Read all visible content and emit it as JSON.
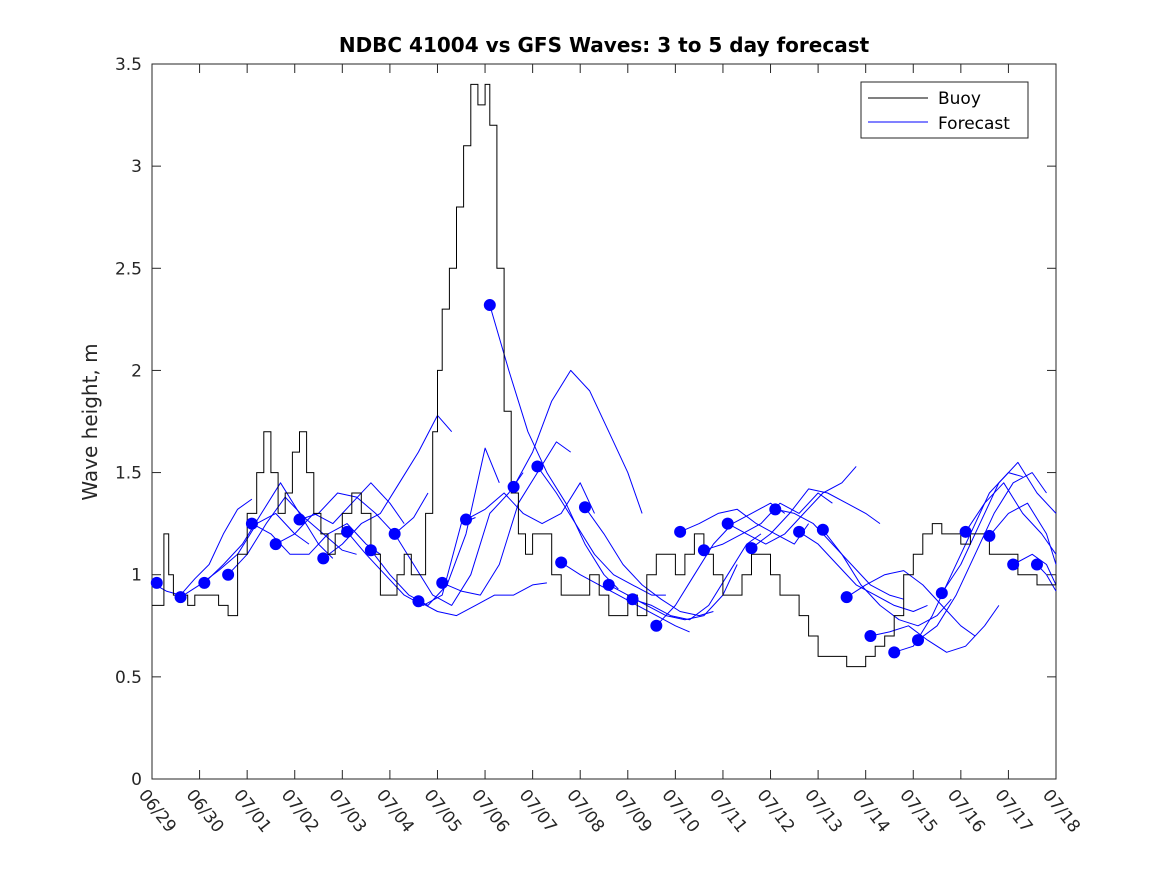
{
  "chart_data": {
    "type": "line",
    "title": "NDBC 41004 vs GFS Waves: 3 to 5 day forecast",
    "xlabel": "",
    "ylabel": "Wave height, m",
    "xlim": [
      0,
      19
    ],
    "ylim": [
      0,
      3.5
    ],
    "x_tick_labels": [
      "06/29",
      "06/30",
      "07/01",
      "07/02",
      "07/03",
      "07/04",
      "07/05",
      "07/06",
      "07/07",
      "07/08",
      "07/09",
      "07/10",
      "07/11",
      "07/12",
      "07/13",
      "07/14",
      "07/15",
      "07/16",
      "07/17",
      "07/18"
    ],
    "y_tick_labels": [
      "0",
      "0.5",
      "1",
      "1.5",
      "2",
      "2.5",
      "3",
      "3.5"
    ],
    "y_ticks": [
      0,
      0.5,
      1,
      1.5,
      2,
      2.5,
      3,
      3.5
    ],
    "x_units": "days since 06/29 00:00",
    "legend": {
      "placement": "top-right",
      "entries": [
        {
          "label": "Buoy",
          "color": "#000000"
        },
        {
          "label": "Forecast",
          "color": "#0000ff"
        }
      ]
    },
    "colors": {
      "buoy": "#000000",
      "forecast": "#0000ff",
      "markers": "#0000ff"
    },
    "buoy": {
      "name": "Buoy",
      "x": [
        0,
        0.15,
        0.25,
        0.35,
        0.45,
        0.6,
        0.75,
        0.9,
        1.0,
        1.2,
        1.4,
        1.6,
        1.8,
        2.0,
        2.2,
        2.35,
        2.5,
        2.65,
        2.8,
        2.95,
        3.1,
        3.25,
        3.4,
        3.55,
        3.7,
        3.85,
        4.0,
        4.2,
        4.4,
        4.6,
        4.8,
        5.0,
        5.15,
        5.3,
        5.45,
        5.6,
        5.75,
        5.9,
        6.0,
        6.1,
        6.25,
        6.4,
        6.55,
        6.7,
        6.85,
        7.0,
        7.1,
        7.25,
        7.4,
        7.55,
        7.7,
        7.85,
        8.0,
        8.2,
        8.4,
        8.6,
        8.8,
        9.0,
        9.2,
        9.4,
        9.6,
        9.8,
        10.0,
        10.2,
        10.4,
        10.6,
        10.8,
        11.0,
        11.2,
        11.4,
        11.6,
        11.8,
        12.0,
        12.2,
        12.4,
        12.6,
        12.8,
        13.0,
        13.2,
        13.4,
        13.6,
        13.8,
        14.0,
        14.2,
        14.4,
        14.6,
        14.8,
        15.0,
        15.2,
        15.4,
        15.6,
        15.8,
        16.0,
        16.2,
        16.4,
        16.6,
        16.8,
        17.0,
        17.2,
        17.4,
        17.6,
        17.8,
        18.0,
        18.2,
        18.4,
        18.6,
        18.8,
        19.0
      ],
      "values": [
        0.85,
        0.85,
        1.2,
        1.0,
        0.9,
        0.9,
        0.85,
        0.9,
        0.9,
        0.9,
        0.85,
        0.8,
        1.1,
        1.3,
        1.5,
        1.7,
        1.5,
        1.3,
        1.4,
        1.6,
        1.7,
        1.5,
        1.3,
        1.2,
        1.1,
        1.2,
        1.3,
        1.4,
        1.3,
        1.1,
        0.9,
        0.9,
        1.0,
        1.1,
        1.0,
        1.0,
        1.3,
        1.7,
        2.0,
        2.3,
        2.5,
        2.8,
        3.1,
        3.4,
        3.3,
        3.4,
        3.2,
        2.5,
        1.8,
        1.4,
        1.2,
        1.1,
        1.2,
        1.2,
        1.0,
        0.9,
        0.9,
        0.9,
        1.0,
        0.9,
        0.8,
        0.8,
        0.9,
        0.8,
        1.0,
        1.1,
        1.1,
        1.0,
        1.1,
        1.2,
        1.1,
        1.0,
        0.9,
        0.9,
        1.0,
        1.1,
        1.1,
        1.0,
        0.9,
        0.9,
        0.8,
        0.7,
        0.6,
        0.6,
        0.6,
        0.55,
        0.55,
        0.6,
        0.65,
        0.7,
        0.8,
        1.0,
        1.1,
        1.2,
        1.25,
        1.2,
        1.2,
        1.15,
        1.2,
        1.2,
        1.1,
        1.1,
        1.1,
        1.0,
        1.0,
        0.95,
        0.95,
        1.0
      ]
    },
    "forecast_runs": [
      {
        "x": [
          0.0,
          0.3,
          0.6,
          0.9,
          1.2,
          1.5,
          1.8,
          2.1
        ],
        "values": [
          0.96,
          0.92,
          0.9,
          0.98,
          1.05,
          1.2,
          1.32,
          1.37
        ]
      },
      {
        "x": [
          0.6,
          1.0,
          1.4,
          1.8,
          2.2,
          2.6,
          3.0,
          3.3
        ],
        "values": [
          0.89,
          0.95,
          1.02,
          1.1,
          1.25,
          1.3,
          1.2,
          1.15
        ]
      },
      {
        "x": [
          1.1,
          1.5,
          1.9,
          2.3,
          2.7,
          3.1,
          3.5,
          3.8
        ],
        "values": [
          0.96,
          1.05,
          1.15,
          1.3,
          1.45,
          1.3,
          1.15,
          1.08
        ]
      },
      {
        "x": [
          1.6,
          2.0,
          2.4,
          2.8,
          3.2,
          3.6,
          4.0,
          4.3
        ],
        "values": [
          1.0,
          1.1,
          1.25,
          1.38,
          1.28,
          1.2,
          1.12,
          1.1
        ]
      },
      {
        "x": [
          2.1,
          2.5,
          2.9,
          3.3,
          3.7,
          4.1,
          4.5,
          4.8
        ],
        "values": [
          1.25,
          1.2,
          1.1,
          1.1,
          1.2,
          1.25,
          1.15,
          1.1
        ]
      },
      {
        "x": [
          2.6,
          3.0,
          3.4,
          3.8,
          4.2,
          4.6,
          5.0,
          5.3
        ],
        "values": [
          1.15,
          1.2,
          1.3,
          1.25,
          1.35,
          1.45,
          1.35,
          1.25
        ]
      },
      {
        "x": [
          3.1,
          3.5,
          3.9,
          4.3,
          4.7,
          5.1,
          5.5,
          5.8
        ],
        "values": [
          1.27,
          1.3,
          1.4,
          1.38,
          1.3,
          1.2,
          1.28,
          1.4
        ]
      },
      {
        "x": [
          3.6,
          4.0,
          4.4,
          4.8,
          5.2,
          5.6,
          6.0,
          6.3
        ],
        "values": [
          1.08,
          1.15,
          1.25,
          1.3,
          1.45,
          1.6,
          1.78,
          1.7
        ]
      },
      {
        "x": [
          4.1,
          4.5,
          4.9,
          5.3,
          5.7,
          6.1,
          6.5,
          6.8
        ],
        "values": [
          1.21,
          1.1,
          1.0,
          0.9,
          0.85,
          0.9,
          1.25,
          1.28
        ]
      },
      {
        "x": [
          4.6,
          5.0,
          5.4,
          5.8,
          6.2,
          6.6,
          7.0,
          7.3
        ],
        "values": [
          1.12,
          1.0,
          0.9,
          0.85,
          0.95,
          1.2,
          1.62,
          1.45
        ]
      },
      {
        "x": [
          5.1,
          5.5,
          5.9,
          6.3,
          6.7,
          7.1,
          7.5,
          7.8
        ],
        "values": [
          1.2,
          1.05,
          0.9,
          0.85,
          1.0,
          1.3,
          1.4,
          1.5
        ]
      },
      {
        "x": [
          5.6,
          6.0,
          6.4,
          6.8,
          7.2,
          7.6,
          8.0,
          8.3
        ],
        "values": [
          0.87,
          0.82,
          0.8,
          0.85,
          0.9,
          0.9,
          0.95,
          0.96
        ]
      },
      {
        "x": [
          6.1,
          6.5,
          6.9,
          7.3,
          7.7,
          8.1,
          8.5,
          8.8
        ],
        "values": [
          0.96,
          0.92,
          0.9,
          1.05,
          1.35,
          1.5,
          1.65,
          1.6
        ]
      },
      {
        "x": [
          6.6,
          7.0,
          7.4,
          7.8,
          8.2,
          8.6,
          9.0,
          9.3
        ],
        "values": [
          1.27,
          1.32,
          1.4,
          1.3,
          1.25,
          1.3,
          1.45,
          1.3
        ]
      },
      {
        "x": [
          7.1,
          7.5,
          7.9,
          8.3,
          8.7,
          9.1,
          9.5,
          9.8
        ],
        "values": [
          2.32,
          2.0,
          1.7,
          1.5,
          1.35,
          1.15,
          1.0,
          0.93
        ]
      },
      {
        "x": [
          7.6,
          8.0,
          8.4,
          8.8,
          9.2,
          9.6,
          10.0,
          10.3
        ],
        "values": [
          1.43,
          1.6,
          1.85,
          2.0,
          1.9,
          1.7,
          1.5,
          1.3
        ]
      },
      {
        "x": [
          8.1,
          8.5,
          8.9,
          9.3,
          9.7,
          10.1,
          10.5,
          10.8
        ],
        "values": [
          1.53,
          1.4,
          1.25,
          1.1,
          1.0,
          0.95,
          0.9,
          0.9
        ]
      },
      {
        "x": [
          8.6,
          9.0,
          9.4,
          9.8,
          10.2,
          10.6,
          11.0,
          11.3
        ],
        "values": [
          1.06,
          1.0,
          0.95,
          0.9,
          0.85,
          0.8,
          0.75,
          0.72
        ]
      },
      {
        "x": [
          9.1,
          9.5,
          9.9,
          10.3,
          10.7,
          11.1,
          11.5,
          11.8
        ],
        "values": [
          1.33,
          1.2,
          1.05,
          0.95,
          0.88,
          0.82,
          0.8,
          0.82
        ]
      },
      {
        "x": [
          9.6,
          10.0,
          10.4,
          10.8,
          11.2,
          11.6,
          12.0,
          12.3
        ],
        "values": [
          0.95,
          0.9,
          0.85,
          0.8,
          0.78,
          0.8,
          0.9,
          1.05
        ]
      },
      {
        "x": [
          10.1,
          10.5,
          10.9,
          11.3,
          11.7,
          12.1,
          12.5,
          12.8
        ],
        "values": [
          0.88,
          0.85,
          0.8,
          0.78,
          0.85,
          1.0,
          1.15,
          1.2
        ]
      },
      {
        "x": [
          10.6,
          11.0,
          11.4,
          11.8,
          12.2,
          12.6,
          13.0,
          13.3
        ],
        "values": [
          0.75,
          0.85,
          1.0,
          1.15,
          1.25,
          1.3,
          1.35,
          1.3
        ]
      },
      {
        "x": [
          11.1,
          11.5,
          11.9,
          12.3,
          12.7,
          13.1,
          13.5,
          13.8
        ],
        "values": [
          1.21,
          1.25,
          1.3,
          1.32,
          1.25,
          1.2,
          1.15,
          1.25
        ]
      },
      {
        "x": [
          11.6,
          12.0,
          12.4,
          12.8,
          13.2,
          13.6,
          14.0,
          14.3
        ],
        "values": [
          1.12,
          1.15,
          1.2,
          1.25,
          1.35,
          1.3,
          1.4,
          1.35
        ]
      },
      {
        "x": [
          12.1,
          12.5,
          12.9,
          13.3,
          13.7,
          14.1,
          14.5,
          14.8
        ],
        "values": [
          1.25,
          1.2,
          1.15,
          1.2,
          1.3,
          1.4,
          1.45,
          1.53
        ]
      },
      {
        "x": [
          12.6,
          13.0,
          13.4,
          13.8,
          14.2,
          14.6,
          15.0,
          15.3
        ],
        "values": [
          1.13,
          1.2,
          1.3,
          1.42,
          1.4,
          1.35,
          1.3,
          1.25
        ]
      },
      {
        "x": [
          13.1,
          13.5,
          13.9,
          14.3,
          14.7,
          15.1,
          15.5,
          15.8
        ],
        "values": [
          1.32,
          1.3,
          1.25,
          1.15,
          1.05,
          0.95,
          0.9,
          0.88
        ]
      },
      {
        "x": [
          13.6,
          14.0,
          14.4,
          14.8,
          15.2,
          15.6,
          16.0,
          16.3
        ],
        "values": [
          1.21,
          1.15,
          1.05,
          0.95,
          0.9,
          0.85,
          0.82,
          0.85
        ]
      },
      {
        "x": [
          14.1,
          14.5,
          14.9,
          15.3,
          15.7,
          16.1,
          16.5,
          16.8
        ],
        "values": [
          1.22,
          1.1,
          0.95,
          0.85,
          0.78,
          0.75,
          0.8,
          0.88
        ]
      },
      {
        "x": [
          14.6,
          15.0,
          15.4,
          15.8,
          16.2,
          16.6,
          17.0,
          17.3
        ],
        "values": [
          0.89,
          0.95,
          1.0,
          1.02,
          0.95,
          0.85,
          0.75,
          0.7
        ]
      },
      {
        "x": [
          15.1,
          15.5,
          15.9,
          16.3,
          16.7,
          17.1,
          17.5,
          17.8
        ],
        "values": [
          0.7,
          0.72,
          0.75,
          0.68,
          0.62,
          0.65,
          0.75,
          0.85
        ]
      },
      {
        "x": [
          15.6,
          16.0,
          16.4,
          16.8,
          17.2,
          17.6,
          18.0,
          18.3
        ],
        "values": [
          0.62,
          0.65,
          0.8,
          1.0,
          1.2,
          1.4,
          1.5,
          1.48
        ]
      },
      {
        "x": [
          16.1,
          16.5,
          16.9,
          17.3,
          17.7,
          18.1,
          18.5,
          18.8
        ],
        "values": [
          0.68,
          0.75,
          0.9,
          1.1,
          1.3,
          1.45,
          1.5,
          1.4
        ]
      },
      {
        "x": [
          16.6,
          17.0,
          17.4,
          17.8,
          18.2,
          18.6,
          19.0
        ],
        "values": [
          0.91,
          1.05,
          1.25,
          1.45,
          1.55,
          1.4,
          1.3
        ]
      },
      {
        "x": [
          17.1,
          17.5,
          17.9,
          18.3,
          18.7,
          19.0
        ],
        "values": [
          1.21,
          1.35,
          1.45,
          1.3,
          1.2,
          1.1
        ]
      },
      {
        "x": [
          17.6,
          18.0,
          18.4,
          18.8,
          19.0
        ],
        "values": [
          1.19,
          1.3,
          1.35,
          1.2,
          1.05
        ]
      },
      {
        "x": [
          18.1,
          18.5,
          18.8,
          19.0
        ],
        "values": [
          1.05,
          1.1,
          1.05,
          0.95
        ]
      },
      {
        "x": [
          18.6,
          18.8,
          19.0
        ],
        "values": [
          1.05,
          1.0,
          0.92
        ]
      }
    ],
    "markers": {
      "x": [
        0.1,
        0.6,
        1.1,
        1.6,
        2.1,
        2.6,
        3.1,
        3.6,
        4.1,
        4.6,
        5.1,
        5.6,
        6.1,
        6.6,
        7.1,
        7.6,
        8.1,
        8.6,
        9.1,
        9.6,
        10.1,
        10.6,
        11.1,
        11.6,
        12.1,
        12.6,
        13.1,
        13.6,
        14.1,
        14.6,
        15.1,
        15.6,
        16.1,
        16.6,
        17.1,
        17.6,
        18.1,
        18.6
      ],
      "values": [
        0.96,
        0.89,
        0.96,
        1.0,
        1.25,
        1.15,
        1.27,
        1.08,
        1.21,
        1.12,
        1.2,
        0.87,
        0.96,
        1.27,
        2.32,
        1.43,
        1.53,
        1.06,
        1.33,
        0.95,
        0.88,
        0.75,
        1.21,
        1.12,
        1.25,
        1.13,
        1.32,
        1.21,
        1.22,
        0.89,
        0.7,
        0.62,
        0.68,
        0.91,
        1.21,
        1.19,
        1.05,
        1.05
      ]
    }
  }
}
